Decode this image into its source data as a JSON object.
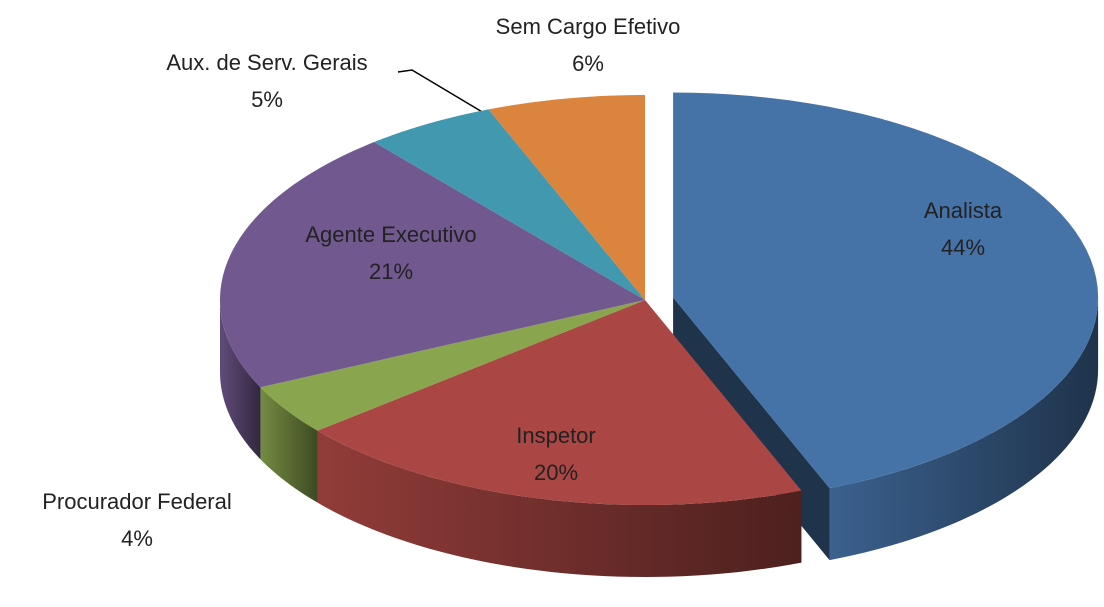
{
  "chart_data": {
    "type": "pie3d",
    "categories": [
      "Analista",
      "Inspetor",
      "Procurador Federal",
      "Agente Executivo",
      "Aux. de Serv. Gerais",
      "Sem Cargo Efetivo"
    ],
    "values": [
      44,
      20,
      4,
      21,
      5,
      6
    ],
    "value_labels": [
      "44%",
      "20%",
      "4%",
      "21%",
      "5%",
      "6%"
    ],
    "colors": [
      "#4572a7",
      "#aa4643",
      "#89a54e",
      "#71588f",
      "#4198af",
      "#db843d"
    ],
    "exploded": [
      0
    ]
  }
}
